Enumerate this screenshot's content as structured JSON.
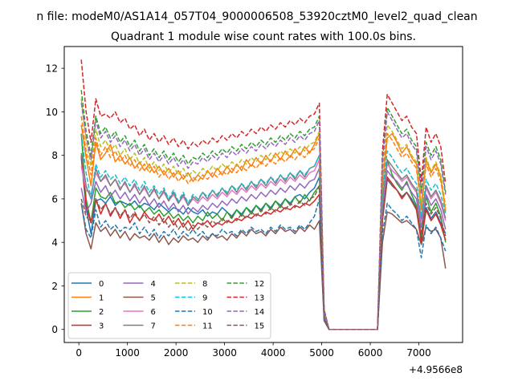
{
  "chart_data": {
    "type": "line",
    "suptitle": "n file: modeM0/AS1A14_057T04_9000006508_53920cztM0_level2_quad_clean",
    "title": "Quadrant 1 module wise count rates with 100.0s bins.",
    "xlabel": "",
    "ylabel": "",
    "x_offset_label": "+4.9566e8",
    "xlim": [
      -300,
      7900
    ],
    "ylim": [
      -0.6,
      13.0
    ],
    "x_ticks": [
      0,
      1000,
      2000,
      3000,
      4000,
      5000,
      6000,
      7000
    ],
    "x_tick_labels": [
      "0",
      "1000",
      "2000",
      "3000",
      "4000",
      "5000",
      "6000",
      "7000"
    ],
    "y_ticks": [
      0,
      2,
      4,
      6,
      8,
      10,
      12
    ],
    "y_tick_labels": [
      "0",
      "2",
      "4",
      "6",
      "8",
      "10",
      "12"
    ],
    "grid": false,
    "legend_placement": "lower-left",
    "legend_columns": 4,
    "series_x": [
      50,
      150,
      250,
      350,
      450,
      550,
      650,
      750,
      850,
      950,
      1050,
      1150,
      1250,
      1350,
      1450,
      1550,
      1650,
      1750,
      1850,
      1950,
      2050,
      2150,
      2250,
      2350,
      2450,
      2550,
      2650,
      2750,
      2850,
      2950,
      3050,
      3150,
      3250,
      3350,
      3450,
      3550,
      3650,
      3750,
      3850,
      3950,
      4050,
      4150,
      4250,
      4350,
      4450,
      4550,
      4650,
      4750,
      4850,
      4950,
      5050,
      5150,
      5250,
      6150,
      6250,
      6350,
      6450,
      6550,
      6650,
      6750,
      6850,
      6950,
      7050,
      7150,
      7250,
      7350,
      7450,
      7550
    ],
    "series": [
      {
        "name": "0",
        "color": "#1f77b4",
        "dash": false,
        "values": [
          7.9,
          5.6,
          4.4,
          5.9,
          6.0,
          5.8,
          6.1,
          5.7,
          5.9,
          5.8,
          5.7,
          5.9,
          5.6,
          5.8,
          5.7,
          5.5,
          5.8,
          5.6,
          5.4,
          5.6,
          5.5,
          5.3,
          5.6,
          5.4,
          5.3,
          5.5,
          5.2,
          5.4,
          5.3,
          5.6,
          5.4,
          5.2,
          5.5,
          5.3,
          5.6,
          5.4,
          5.7,
          5.5,
          5.8,
          5.6,
          5.9,
          5.7,
          6.0,
          5.8,
          6.1,
          6.2,
          6.0,
          6.3,
          6.5,
          7.0,
          0.6,
          0.0,
          0.0,
          0.0,
          5.0,
          6.9,
          6.6,
          6.4,
          6.1,
          6.3,
          6.0,
          5.6,
          4.1,
          5.6,
          5.1,
          5.4,
          4.9,
          4.4
        ]
      },
      {
        "name": "1",
        "color": "#ff7f0e",
        "dash": false,
        "values": [
          9.4,
          7.9,
          6.6,
          8.6,
          7.8,
          8.1,
          8.5,
          7.7,
          8.0,
          7.6,
          7.9,
          7.4,
          7.7,
          7.3,
          7.6,
          7.2,
          7.5,
          7.1,
          7.4,
          7.0,
          7.3,
          6.9,
          7.2,
          6.8,
          7.1,
          6.9,
          7.3,
          7.0,
          7.4,
          7.1,
          7.5,
          7.2,
          7.6,
          7.3,
          7.8,
          7.5,
          7.9,
          7.6,
          8.0,
          7.7,
          8.1,
          7.8,
          8.2,
          7.9,
          8.3,
          8.0,
          8.4,
          8.1,
          8.5,
          9.0,
          0.7,
          0.0,
          0.0,
          0.0,
          6.5,
          8.8,
          9.0,
          8.6,
          8.1,
          8.4,
          7.9,
          7.6,
          5.6,
          7.8,
          7.2,
          7.6,
          7.0,
          5.4
        ]
      },
      {
        "name": "2",
        "color": "#2ca02c",
        "dash": false,
        "values": [
          9.0,
          6.0,
          4.9,
          6.5,
          6.1,
          6.0,
          6.3,
          5.8,
          5.9,
          5.6,
          5.8,
          5.5,
          5.7,
          5.4,
          5.6,
          5.3,
          5.5,
          5.2,
          5.4,
          5.1,
          5.3,
          5.0,
          5.2,
          4.9,
          5.2,
          5.0,
          5.4,
          5.1,
          5.3,
          5.0,
          5.4,
          5.1,
          5.5,
          5.2,
          5.6,
          5.3,
          5.7,
          5.4,
          5.8,
          5.5,
          5.9,
          5.6,
          6.0,
          5.7,
          6.1,
          5.8,
          6.2,
          5.9,
          6.3,
          6.6,
          0.6,
          0.0,
          0.0,
          0.0,
          5.4,
          7.8,
          7.1,
          6.7,
          6.4,
          6.8,
          6.2,
          5.7,
          4.3,
          6.1,
          5.4,
          5.8,
          5.2,
          4.0
        ]
      },
      {
        "name": "3",
        "color": "#d62728",
        "dash": false,
        "values": [
          8.0,
          5.7,
          4.9,
          6.0,
          5.3,
          5.8,
          5.2,
          5.6,
          5.1,
          5.5,
          4.9,
          5.3,
          5.0,
          5.4,
          5.1,
          5.0,
          5.3,
          4.9,
          5.2,
          4.8,
          5.1,
          4.7,
          5.0,
          4.6,
          4.9,
          4.8,
          5.0,
          4.7,
          4.9,
          4.8,
          5.0,
          4.9,
          5.1,
          5.0,
          5.2,
          5.1,
          5.3,
          5.2,
          5.4,
          5.3,
          5.5,
          5.4,
          5.6,
          5.5,
          5.7,
          5.6,
          5.8,
          5.7,
          5.9,
          6.2,
          0.5,
          0.0,
          0.0,
          0.0,
          5.0,
          7.0,
          6.7,
          6.4,
          6.0,
          6.3,
          5.9,
          5.5,
          4.0,
          5.5,
          5.0,
          5.3,
          4.8,
          4.1
        ]
      },
      {
        "name": "4",
        "color": "#9467bd",
        "dash": false,
        "values": [
          6.5,
          5.4,
          5.8,
          6.8,
          6.3,
          6.6,
          6.1,
          6.4,
          6.0,
          6.3,
          5.9,
          6.2,
          5.8,
          6.1,
          5.7,
          6.0,
          5.6,
          5.9,
          5.5,
          5.8,
          5.4,
          5.7,
          5.3,
          5.6,
          5.4,
          5.7,
          5.5,
          5.8,
          5.6,
          5.9,
          5.7,
          6.0,
          5.8,
          6.1,
          5.9,
          6.2,
          6.0,
          6.3,
          6.1,
          6.4,
          6.2,
          6.5,
          6.3,
          6.6,
          6.4,
          6.7,
          6.5,
          6.8,
          6.9,
          7.4,
          0.6,
          0.0,
          0.0,
          0.0,
          5.6,
          7.3,
          7.0,
          6.8,
          6.5,
          6.7,
          6.3,
          6.0,
          4.7,
          6.2,
          5.7,
          6.0,
          5.5,
          4.6
        ]
      },
      {
        "name": "5",
        "color": "#8c564b",
        "dash": false,
        "values": [
          5.8,
          4.4,
          3.7,
          4.9,
          4.5,
          4.7,
          4.3,
          4.6,
          4.2,
          4.5,
          4.1,
          4.4,
          4.2,
          4.3,
          4.1,
          4.4,
          4.0,
          4.3,
          3.9,
          4.2,
          4.0,
          4.3,
          4.1,
          4.2,
          4.0,
          4.3,
          4.1,
          4.4,
          4.2,
          4.3,
          4.1,
          4.4,
          4.2,
          4.5,
          4.3,
          4.6,
          4.4,
          4.5,
          4.3,
          4.6,
          4.4,
          4.7,
          4.5,
          4.6,
          4.4,
          4.7,
          4.5,
          4.8,
          4.6,
          5.0,
          0.4,
          0.0,
          0.0,
          0.0,
          4.0,
          5.4,
          5.3,
          5.1,
          4.9,
          5.0,
          4.8,
          4.6,
          3.9,
          4.7,
          4.5,
          4.6,
          4.2,
          2.8
        ]
      },
      {
        "name": "6",
        "color": "#e377c2",
        "dash": false,
        "values": [
          7.5,
          6.4,
          6.2,
          7.2,
          6.8,
          7.0,
          6.6,
          6.9,
          6.5,
          6.7,
          6.3,
          6.6,
          6.2,
          6.5,
          6.1,
          6.4,
          6.0,
          6.3,
          5.9,
          6.2,
          5.8,
          6.1,
          5.7,
          6.0,
          5.8,
          6.1,
          5.9,
          6.2,
          6.0,
          6.3,
          6.1,
          6.4,
          6.2,
          6.5,
          6.3,
          6.6,
          6.4,
          6.7,
          6.5,
          6.8,
          6.6,
          6.9,
          6.7,
          7.0,
          6.8,
          7.1,
          6.9,
          7.2,
          7.3,
          7.8,
          0.7,
          0.0,
          0.0,
          0.0,
          5.9,
          7.6,
          7.3,
          7.1,
          6.8,
          7.0,
          6.6,
          6.3,
          5.0,
          6.5,
          6.0,
          6.3,
          5.8,
          5.0
        ]
      },
      {
        "name": "7",
        "color": "#7f7f7f",
        "dash": false,
        "values": [
          8.1,
          6.6,
          6.0,
          7.4,
          6.8,
          7.1,
          6.6,
          6.9,
          6.4,
          6.8,
          6.3,
          6.7,
          6.2,
          6.6,
          6.1,
          6.5,
          6.0,
          6.4,
          5.9,
          6.3,
          5.8,
          6.2,
          5.7,
          6.1,
          5.9,
          6.3,
          6.0,
          6.4,
          6.1,
          6.5,
          6.2,
          6.6,
          6.3,
          6.7,
          6.4,
          6.8,
          6.5,
          6.9,
          6.6,
          7.0,
          6.7,
          7.1,
          6.8,
          7.2,
          6.9,
          7.3,
          7.0,
          7.4,
          7.5,
          8.0,
          0.7,
          0.0,
          0.0,
          0.0,
          6.0,
          7.8,
          7.5,
          7.2,
          6.9,
          7.1,
          6.7,
          6.4,
          5.1,
          6.6,
          6.1,
          6.4,
          5.9,
          5.1
        ]
      },
      {
        "name": "8",
        "color": "#bcbd22",
        "dash": true,
        "values": [
          10.6,
          8.7,
          7.5,
          9.2,
          8.4,
          8.7,
          8.2,
          8.5,
          8.0,
          8.3,
          7.8,
          8.1,
          7.6,
          7.9,
          7.4,
          7.7,
          7.3,
          7.6,
          7.2,
          7.5,
          7.1,
          7.4,
          7.0,
          7.3,
          7.1,
          7.4,
          7.2,
          7.5,
          7.3,
          7.6,
          7.4,
          7.7,
          7.5,
          7.8,
          7.6,
          7.9,
          7.7,
          8.0,
          7.8,
          8.1,
          7.9,
          8.2,
          8.0,
          8.3,
          8.1,
          8.4,
          8.2,
          8.5,
          8.6,
          9.1,
          0.8,
          0.0,
          0.0,
          0.0,
          7.1,
          9.4,
          9.1,
          8.7,
          8.3,
          8.5,
          8.0,
          7.7,
          5.8,
          7.9,
          7.3,
          7.7,
          7.1,
          5.7
        ]
      },
      {
        "name": "9",
        "color": "#17becf",
        "dash": true,
        "values": [
          9.0,
          7.2,
          6.0,
          7.6,
          7.0,
          7.3,
          6.9,
          7.1,
          6.7,
          7.0,
          6.6,
          6.9,
          6.4,
          6.8,
          6.3,
          6.6,
          6.2,
          6.5,
          6.0,
          6.4,
          5.9,
          6.3,
          5.8,
          6.2,
          6.0,
          6.3,
          6.1,
          6.4,
          6.2,
          6.5,
          6.3,
          6.6,
          6.4,
          6.7,
          6.5,
          6.8,
          6.6,
          6.9,
          6.7,
          7.0,
          6.8,
          7.1,
          6.9,
          7.2,
          7.0,
          7.3,
          7.1,
          7.4,
          7.5,
          8.0,
          0.7,
          0.0,
          0.0,
          0.0,
          6.3,
          8.2,
          7.9,
          7.5,
          7.2,
          7.4,
          7.0,
          6.7,
          5.2,
          6.9,
          6.4,
          6.7,
          6.2,
          5.3
        ]
      },
      {
        "name": "10",
        "color": "#1f77b4",
        "dash": true,
        "values": [
          5.8,
          4.6,
          4.2,
          5.5,
          4.7,
          5.0,
          4.6,
          4.8,
          4.5,
          4.7,
          4.6,
          4.9,
          4.4,
          4.7,
          4.3,
          4.6,
          4.2,
          4.5,
          4.3,
          4.6,
          4.2,
          4.5,
          4.3,
          4.6,
          4.3,
          4.5,
          4.2,
          4.4,
          4.3,
          4.6,
          4.4,
          4.5,
          4.3,
          4.6,
          4.4,
          4.7,
          4.5,
          4.6,
          4.4,
          4.7,
          4.5,
          4.8,
          4.6,
          4.7,
          4.5,
          4.8,
          4.6,
          4.9,
          5.2,
          6.0,
          0.4,
          0.0,
          0.0,
          0.0,
          4.4,
          5.8,
          5.5,
          5.3,
          5.0,
          5.2,
          4.9,
          4.6,
          3.3,
          4.8,
          4.4,
          4.7,
          4.2,
          3.6
        ]
      },
      {
        "name": "11",
        "color": "#ff7f0e",
        "dash": true,
        "values": [
          9.8,
          8.2,
          7.1,
          8.8,
          8.0,
          8.4,
          7.9,
          8.2,
          7.7,
          8.0,
          7.5,
          7.8,
          7.3,
          7.6,
          7.2,
          7.5,
          7.0,
          7.3,
          6.9,
          7.2,
          6.8,
          7.1,
          6.7,
          7.0,
          6.8,
          7.1,
          6.9,
          7.2,
          7.0,
          7.3,
          7.1,
          7.4,
          7.2,
          7.5,
          7.3,
          7.6,
          7.4,
          7.7,
          7.5,
          7.8,
          7.6,
          7.9,
          7.7,
          8.0,
          7.8,
          8.1,
          7.9,
          8.2,
          8.3,
          8.8,
          0.8,
          0.0,
          0.0,
          0.0,
          7.0,
          9.0,
          8.7,
          8.3,
          7.9,
          8.1,
          7.7,
          7.4,
          5.5,
          7.6,
          7.0,
          7.4,
          6.8,
          5.5
        ]
      },
      {
        "name": "12",
        "color": "#2ca02c",
        "dash": true,
        "values": [
          11.0,
          9.1,
          8.0,
          9.8,
          9.0,
          9.3,
          8.8,
          9.1,
          8.6,
          8.9,
          8.4,
          8.7,
          8.2,
          8.5,
          8.0,
          8.3,
          7.9,
          8.2,
          7.8,
          8.1,
          7.7,
          8.0,
          7.6,
          7.9,
          7.8,
          8.1,
          7.9,
          8.2,
          8.0,
          8.3,
          8.1,
          8.4,
          8.2,
          8.5,
          8.3,
          8.6,
          8.4,
          8.7,
          8.5,
          8.8,
          8.6,
          8.9,
          8.7,
          9.0,
          8.8,
          9.1,
          8.9,
          9.2,
          9.3,
          9.8,
          0.9,
          0.0,
          0.0,
          0.0,
          7.8,
          10.2,
          9.8,
          9.4,
          9.0,
          9.2,
          8.7,
          8.4,
          6.4,
          8.6,
          8.0,
          8.4,
          7.8,
          6.3
        ]
      },
      {
        "name": "13",
        "color": "#d62728",
        "dash": true,
        "values": [
          12.4,
          10.0,
          8.6,
          10.6,
          9.8,
          9.9,
          9.7,
          10.0,
          9.5,
          9.7,
          9.2,
          9.4,
          8.9,
          9.2,
          8.7,
          9.0,
          8.6,
          8.9,
          8.5,
          8.8,
          8.4,
          8.7,
          8.3,
          8.6,
          8.4,
          8.7,
          8.5,
          8.8,
          8.6,
          8.9,
          8.7,
          9.0,
          8.8,
          9.1,
          8.9,
          9.2,
          9.0,
          9.3,
          9.1,
          9.4,
          9.2,
          9.5,
          9.3,
          9.6,
          9.4,
          9.7,
          9.5,
          9.8,
          9.9,
          10.4,
          0.9,
          0.0,
          0.0,
          0.0,
          8.2,
          10.8,
          10.4,
          10.0,
          9.6,
          9.8,
          9.3,
          9.0,
          6.8,
          9.3,
          8.6,
          9.0,
          8.4,
          6.7
        ]
      },
      {
        "name": "14",
        "color": "#9467bd",
        "dash": true,
        "values": [
          10.4,
          8.9,
          7.8,
          9.6,
          8.8,
          9.1,
          8.6,
          8.9,
          8.4,
          8.7,
          8.2,
          8.5,
          8.0,
          8.3,
          7.8,
          8.1,
          7.7,
          8.0,
          7.6,
          7.9,
          7.5,
          7.8,
          7.4,
          7.7,
          7.6,
          7.9,
          7.7,
          8.0,
          7.8,
          8.1,
          7.9,
          8.2,
          8.0,
          8.3,
          8.1,
          8.4,
          8.2,
          8.5,
          8.3,
          8.6,
          8.4,
          8.7,
          8.5,
          8.8,
          8.6,
          8.9,
          8.7,
          9.0,
          9.1,
          9.6,
          0.8,
          0.0,
          0.0,
          0.0,
          7.6,
          10.0,
          9.6,
          9.2,
          8.8,
          9.0,
          8.5,
          8.2,
          6.2,
          8.4,
          7.8,
          8.2,
          7.6,
          6.2
        ]
      },
      {
        "name": "15",
        "color": "#8c564b",
        "dash": true,
        "values": [
          6.0,
          5.2,
          4.9,
          6.0,
          5.5,
          5.8,
          5.3,
          5.6,
          5.2,
          5.5,
          5.1,
          5.4,
          5.0,
          5.3,
          4.9,
          5.2,
          4.8,
          5.1,
          4.7,
          5.0,
          4.6,
          4.9,
          4.5,
          4.8,
          4.6,
          4.9,
          4.7,
          5.0,
          4.8,
          5.1,
          4.9,
          5.2,
          5.0,
          5.3,
          5.1,
          5.4,
          5.2,
          5.5,
          5.3,
          5.6,
          5.4,
          5.7,
          5.5,
          5.8,
          5.6,
          5.9,
          5.7,
          6.0,
          6.1,
          6.6,
          0.5,
          0.0,
          0.0,
          0.0,
          5.1,
          6.9,
          6.6,
          6.4,
          6.1,
          6.3,
          5.9,
          5.6,
          4.4,
          5.8,
          5.3,
          5.6,
          5.1,
          4.3
        ]
      }
    ]
  }
}
